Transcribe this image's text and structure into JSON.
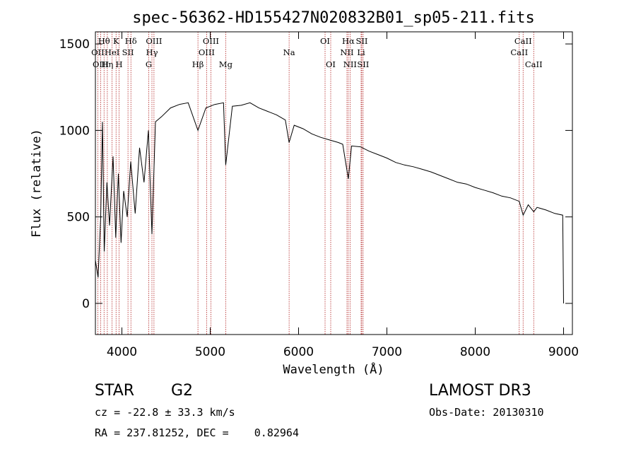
{
  "chart_data": {
    "type": "line",
    "title": "spec-56362-HD155427N020832B01_sp05-211.fits",
    "xlabel": "Wavelength (Å)",
    "ylabel": "Flux (relative)",
    "xlim": [
      3700,
      9100
    ],
    "ylim": [
      -180,
      1570
    ],
    "xticks": [
      4000,
      5000,
      6000,
      7000,
      8000,
      9000
    ],
    "yticks": [
      0,
      500,
      1000,
      1500
    ],
    "series": [
      {
        "name": "spectrum",
        "x": [
          3700,
          3730,
          3760,
          3780,
          3800,
          3830,
          3860,
          3900,
          3930,
          3960,
          3990,
          4020,
          4060,
          4100,
          4150,
          4200,
          4250,
          4300,
          4340,
          4380,
          4450,
          4550,
          4650,
          4750,
          4861,
          4950,
          5050,
          5150,
          5175,
          5250,
          5350,
          5450,
          5550,
          5650,
          5750,
          5850,
          5893,
          5950,
          6050,
          6150,
          6250,
          6350,
          6450,
          6500,
          6563,
          6600,
          6700,
          6800,
          6900,
          7000,
          7100,
          7200,
          7300,
          7400,
          7500,
          7600,
          7700,
          7800,
          7900,
          8000,
          8100,
          8200,
          8300,
          8400,
          8498,
          8542,
          8600,
          8662,
          8700,
          8800,
          8900,
          8990,
          9000
        ],
        "y": [
          250,
          150,
          500,
          1050,
          300,
          700,
          450,
          850,
          380,
          750,
          350,
          650,
          500,
          820,
          520,
          900,
          700,
          1000,
          400,
          1050,
          1080,
          1130,
          1150,
          1160,
          1000,
          1130,
          1150,
          1160,
          800,
          1140,
          1145,
          1160,
          1130,
          1110,
          1090,
          1060,
          930,
          1030,
          1010,
          980,
          960,
          945,
          930,
          920,
          720,
          910,
          905,
          880,
          860,
          840,
          815,
          800,
          790,
          775,
          760,
          740,
          720,
          700,
          690,
          670,
          655,
          640,
          620,
          610,
          590,
          510,
          570,
          530,
          555,
          540,
          520,
          510,
          0
        ]
      }
    ],
    "lines": [
      {
        "label": "Hθ",
        "wave": 3798,
        "row": 1
      },
      {
        "label": "OII",
        "wave": 3727,
        "row": 2
      },
      {
        "label": "OIII",
        "wave": 3760,
        "row": 3
      },
      {
        "label": "Hη",
        "wave": 3835,
        "row": 3
      },
      {
        "label": "HeI",
        "wave": 3889,
        "row": 2
      },
      {
        "label": "K",
        "wave": 3934,
        "row": 1
      },
      {
        "label": "H",
        "wave": 3968,
        "row": 3
      },
      {
        "label": "SII",
        "wave": 4069,
        "row": 2
      },
      {
        "label": "Hδ",
        "wave": 4102,
        "row": 1
      },
      {
        "label": "OIII",
        "wave": 4363,
        "row": 1
      },
      {
        "label": "Hγ",
        "wave": 4340,
        "row": 2
      },
      {
        "label": "G",
        "wave": 4304,
        "row": 3
      },
      {
        "label": "Hβ",
        "wave": 4861,
        "row": 4
      },
      {
        "label": "OIII",
        "wave": 4959,
        "row": 2
      },
      {
        "label": "OIII",
        "wave": 5007,
        "row": 1
      },
      {
        "label": "Mg",
        "wave": 5175,
        "row": 4
      },
      {
        "label": "Na",
        "wave": 5893,
        "row": 2
      },
      {
        "label": "OI",
        "wave": 6300,
        "row": 1
      },
      {
        "label": "OI",
        "wave": 6364,
        "row": 3
      },
      {
        "label": "NII",
        "wave": 6548,
        "row": 2
      },
      {
        "label": "Hα",
        "wave": 6563,
        "row": 1
      },
      {
        "label": "NII",
        "wave": 6583,
        "row": 3
      },
      {
        "label": "SII",
        "wave": 6716,
        "row": 1
      },
      {
        "label": "Li",
        "wave": 6708,
        "row": 2
      },
      {
        "label": "SII",
        "wave": 6731,
        "row": 3
      },
      {
        "label": "CaII",
        "wave": 8498,
        "row": 2
      },
      {
        "label": "CaII",
        "wave": 8542,
        "row": 1
      },
      {
        "label": "CaII",
        "wave": 8662,
        "row": 3
      }
    ]
  },
  "info": {
    "object_class": "STAR",
    "subclass": "G2",
    "survey": "LAMOST DR3",
    "redshift": "cz = -22.8 ± 33.3 km/s",
    "obs_date": "Obs-Date: 20130310",
    "coords": "RA = 237.81252, DEC =    0.82964"
  },
  "colors": {
    "line_marker": "#b22222",
    "spectrum": "#000000"
  }
}
